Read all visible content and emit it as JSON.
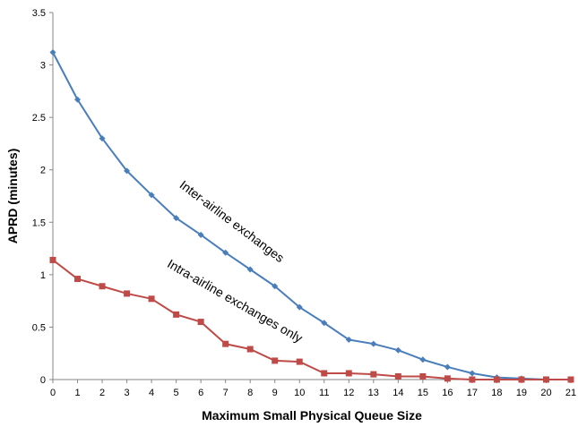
{
  "chart_data": {
    "type": "line",
    "xlabel": "Maximum Small Physical Queue Size",
    "ylabel": "APRD (minutes)",
    "ylim": [
      0,
      3.5
    ],
    "yticks": [
      "0",
      "0.5",
      "1",
      "1.5",
      "2",
      "2.5",
      "3",
      "3.5"
    ],
    "x": [
      0,
      1,
      2,
      3,
      4,
      5,
      6,
      7,
      8,
      9,
      10,
      11,
      12,
      13,
      14,
      15,
      16,
      17,
      18,
      19,
      20,
      21
    ],
    "xtick_labels": [
      "0",
      "1",
      "2",
      "3",
      "4",
      "5",
      "6",
      "7",
      "8",
      "9",
      "10",
      "11",
      "12",
      "13",
      "14",
      "15",
      "16",
      "17",
      "18",
      "19",
      "20",
      "21"
    ],
    "grid": false,
    "series": [
      {
        "color": "#4a7ebb",
        "marker": "diamond",
        "values": [
          3.12,
          2.67,
          2.3,
          1.99,
          1.76,
          1.54,
          1.38,
          1.21,
          1.05,
          0.89,
          0.69,
          0.54,
          0.38,
          0.34,
          0.28,
          0.19,
          0.12,
          0.06,
          0.02,
          0.01,
          0.0,
          0.0
        ]
      },
      {
        "color": "#be4b48",
        "marker": "square",
        "values": [
          1.14,
          0.96,
          0.89,
          0.82,
          0.77,
          0.62,
          0.55,
          0.34,
          0.29,
          0.18,
          0.17,
          0.06,
          0.06,
          0.05,
          0.03,
          0.03,
          0.01,
          0.0,
          0.0,
          0.0,
          0.0,
          0.0
        ]
      }
    ],
    "annotations": [
      {
        "text": "Inter-airline exchanges",
        "at_x": 5.1,
        "at_y": 1.84,
        "angle": 37
      },
      {
        "text": "Intra-airline exchanges only",
        "at_x": 4.6,
        "at_y": 1.08,
        "angle": 30
      }
    ]
  }
}
